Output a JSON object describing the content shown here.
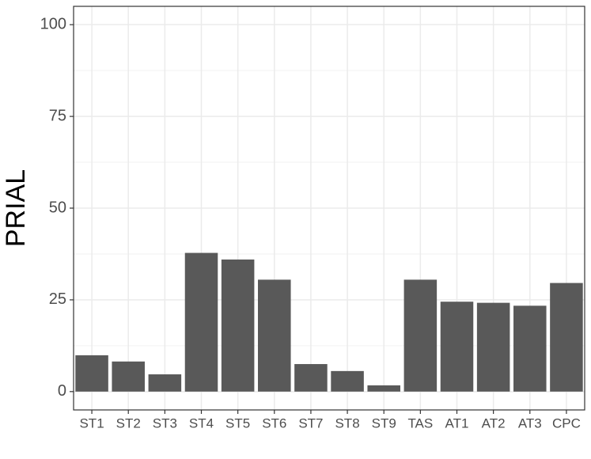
{
  "chart_data": {
    "type": "bar",
    "y_label": "PRIAL",
    "categories": [
      "ST1",
      "ST2",
      "ST3",
      "ST4",
      "ST5",
      "ST6",
      "ST7",
      "ST8",
      "ST9",
      "TAS",
      "AT1",
      "AT2",
      "AT3",
      "CPC"
    ],
    "values": [
      9.9,
      8.2,
      4.7,
      37.8,
      36.0,
      30.5,
      7.5,
      5.6,
      1.7,
      30.5,
      24.5,
      24.2,
      23.4,
      29.6
    ],
    "color": "#595959",
    "ylim": [
      -5,
      105
    ],
    "yticks": [
      0,
      25,
      50,
      75,
      100
    ],
    "minor_yticks": [
      12.5,
      37.5,
      62.5,
      87.5
    ],
    "grid": true
  }
}
